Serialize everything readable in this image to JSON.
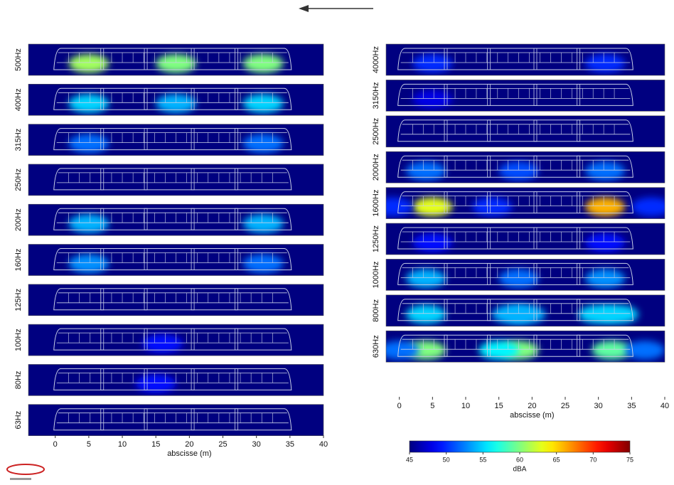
{
  "chart_data": [
    {
      "type": "heatmap-panels",
      "xlabel": "abscisse (m)",
      "xlim": [
        -4,
        40
      ],
      "xticks": [
        0,
        5,
        10,
        15,
        20,
        25,
        30,
        35,
        40
      ],
      "panels": [
        {
          "label": "500Hz",
          "hotspots": [
            {
              "x": 5,
              "level": 61
            },
            {
              "x": 18,
              "level": 60
            },
            {
              "x": 31,
              "level": 60
            }
          ]
        },
        {
          "label": "400Hz",
          "hotspots": [
            {
              "x": 5,
              "level": 55
            },
            {
              "x": 18,
              "level": 54
            },
            {
              "x": 31,
              "level": 55
            }
          ]
        },
        {
          "label": "315Hz",
          "hotspots": [
            {
              "x": 5,
              "level": 52
            },
            {
              "x": 31,
              "level": 52
            }
          ]
        },
        {
          "label": "250Hz",
          "hotspots": []
        },
        {
          "label": "200Hz",
          "hotspots": [
            {
              "x": 5,
              "level": 54
            },
            {
              "x": 31,
              "level": 54
            }
          ]
        },
        {
          "label": "160Hz",
          "hotspots": [
            {
              "x": 5,
              "level": 53
            },
            {
              "x": 31,
              "level": 52
            }
          ]
        },
        {
          "label": "125Hz",
          "hotspots": []
        },
        {
          "label": "100Hz",
          "hotspots": [
            {
              "x": 16,
              "level": 49
            }
          ]
        },
        {
          "label": "80Hz",
          "hotspots": [
            {
              "x": 15,
              "level": 49
            }
          ]
        },
        {
          "label": "63Hz",
          "hotspots": []
        }
      ]
    },
    {
      "type": "heatmap-panels",
      "xlabel": "abscisse (m)",
      "xlim": [
        -2,
        40
      ],
      "xticks": [
        0,
        5,
        10,
        15,
        20,
        25,
        30,
        35,
        40
      ],
      "panels": [
        {
          "label": "4000Hz",
          "hotspots": [
            {
              "x": 5,
              "level": 50
            },
            {
              "x": 31,
              "level": 50
            }
          ]
        },
        {
          "label": "3150Hz",
          "hotspots": [
            {
              "x": 5,
              "level": 48
            }
          ]
        },
        {
          "label": "2500Hz",
          "hotspots": []
        },
        {
          "label": "2000Hz",
          "hotspots": [
            {
              "x": 4,
              "level": 52
            },
            {
              "x": 18,
              "level": 51
            },
            {
              "x": 31,
              "level": 52
            }
          ]
        },
        {
          "label": "1600Hz",
          "hotspots": [
            {
              "x": 5,
              "level": 63
            },
            {
              "x": 31,
              "level": 66
            },
            {
              "x": -1,
              "level": 50
            },
            {
              "x": 14,
              "level": 50
            },
            {
              "x": 38,
              "level": 50
            }
          ]
        },
        {
          "label": "1250Hz",
          "hotspots": [
            {
              "x": 5,
              "level": 49
            },
            {
              "x": 31,
              "level": 49
            }
          ]
        },
        {
          "label": "1000Hz",
          "hotspots": [
            {
              "x": 4,
              "level": 54
            },
            {
              "x": 18,
              "level": 52
            },
            {
              "x": 31,
              "level": 53
            }
          ]
        },
        {
          "label": "800Hz",
          "hotspots": [
            {
              "x": 4,
              "level": 55
            },
            {
              "x": 17,
              "level": 54
            },
            {
              "x": 19,
              "level": 54
            },
            {
              "x": 30,
              "level": 55
            },
            {
              "x": 33,
              "level": 55
            }
          ]
        },
        {
          "label": "630Hz",
          "hotspots": [
            {
              "x": 4,
              "level": 60
            },
            {
              "x": 18,
              "level": 60
            },
            {
              "x": 32,
              "level": 59
            },
            {
              "x": 15,
              "level": 56
            },
            {
              "x": 0,
              "level": 52
            },
            {
              "x": 37,
              "level": 52
            }
          ]
        }
      ]
    },
    {
      "type": "colorbar",
      "label": "dBA",
      "lim": [
        45,
        75
      ],
      "ticks": [
        45,
        50,
        55,
        60,
        65,
        70,
        75
      ]
    }
  ]
}
